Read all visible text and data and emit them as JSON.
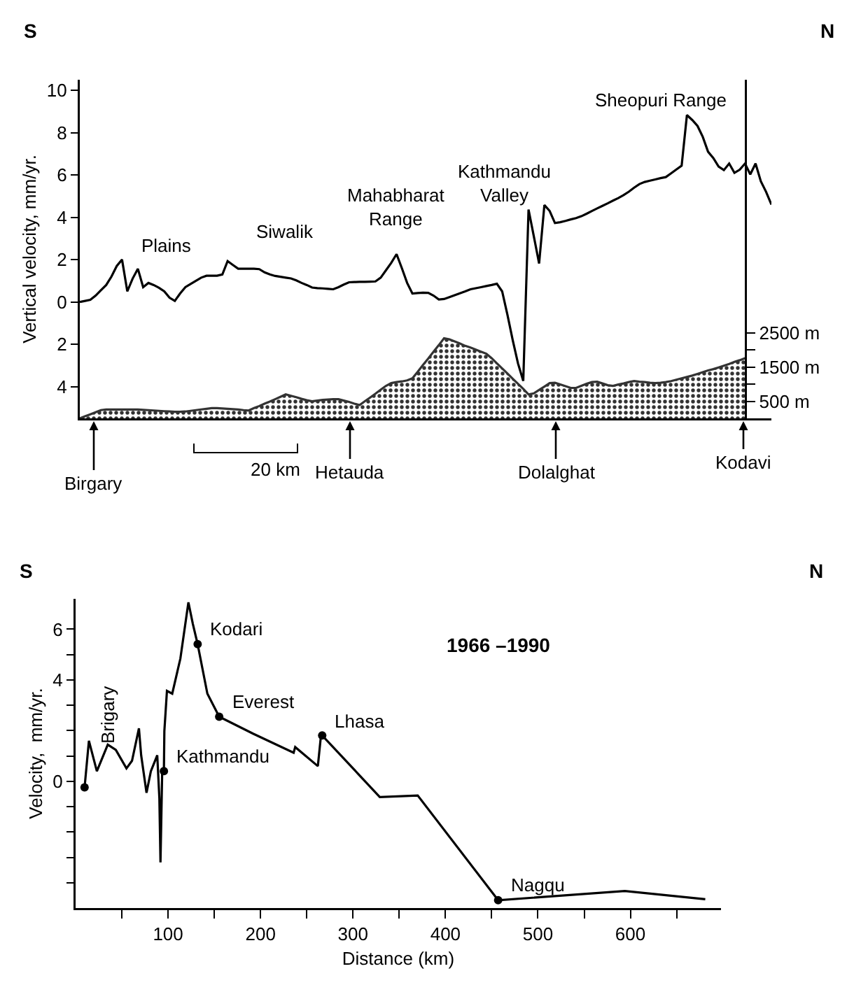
{
  "chart_data": [
    {
      "type": "line",
      "ylabel": "Vertical velocity, mm/yr.",
      "categories": [
        null,
        null,
        null,
        null,
        null,
        null,
        null,
        null,
        null,
        null,
        null,
        null,
        null,
        null,
        null,
        null,
        null,
        null,
        null,
        null,
        null,
        null,
        null,
        null,
        null,
        null,
        null,
        null,
        null,
        null,
        null,
        null,
        null,
        null,
        null,
        null,
        null,
        null,
        null,
        null,
        null,
        null,
        null,
        null,
        null,
        null,
        null,
        null,
        null,
        null,
        null,
        null,
        null,
        null,
        null,
        null,
        null,
        null,
        null,
        null,
        null,
        null,
        null,
        null,
        null,
        null,
        null,
        null,
        null,
        null,
        null,
        null,
        null,
        null,
        null,
        null,
        null,
        null,
        null,
        null,
        null,
        null,
        null,
        null,
        null,
        null,
        null,
        null,
        null,
        null,
        null,
        null,
        null,
        null,
        null,
        null,
        null,
        null,
        null,
        null,
        null,
        null,
        null,
        null,
        null,
        null,
        null,
        null,
        null,
        null,
        null,
        null,
        null,
        null,
        null,
        null,
        null,
        null,
        null,
        null,
        null,
        null,
        null,
        null,
        null,
        null,
        null,
        null,
        null,
        null,
        null,
        null
      ],
      "ylim": [
        -5.5,
        10.5
      ],
      "yticks": [
        10,
        8,
        6,
        4,
        2,
        0,
        {
          "value": -2,
          "label": "2"
        },
        {
          "value": -4,
          "label": "4"
        }
      ],
      "y2lim": [
        0,
        9900
      ],
      "y2ticks": [
        {
          "value": 500,
          "label": "500 m"
        },
        {
          "value": 1000,
          "label": null
        },
        {
          "value": 1500,
          "label": "1500 m"
        },
        {
          "value": 2000,
          "label": null
        },
        {
          "value": 2500,
          "label": "2500 m"
        }
      ],
      "tick_labels": "y",
      "series": [
        {
          "color": "#000000",
          "values": [
            0,
            0.05,
            0.1,
            0.3,
            0.55,
            0.8,
            1.2,
            1.7,
            2.0,
            0.5,
            1.1,
            1.57,
            0.7,
            0.9,
            0.8,
            0.67,
            0.5,
            0.2,
            0.05,
            0.4,
            0.7,
            0.85,
            1.0,
            1.15,
            1.24,
            1.24,
            1.24,
            1.3,
            1.93,
            1.75,
            1.57,
            1.57,
            1.57,
            1.57,
            1.55,
            1.4,
            1.3,
            1.23,
            1.19,
            1.15,
            1.11,
            1.02,
            0.9,
            0.8,
            0.68,
            0.65,
            0.64,
            0.62,
            0.6,
            0.7,
            0.82,
            0.93,
            0.94,
            0.95,
            0.95,
            0.96,
            0.97,
            1.15,
            1.5,
            1.85,
            2.26,
            1.6,
            0.9,
            0.4,
            0.42,
            0.44,
            0.43,
            0.3,
            0.12,
            0.14,
            0.23,
            0.32,
            0.41,
            0.5,
            0.6,
            0.65,
            0.7,
            0.75,
            0.8,
            0.86,
            0.5,
            -0.6,
            -1.8,
            -2.9,
            -3.73,
            4.37,
            3.1,
            1.82,
            4.58,
            4.3,
            3.73,
            3.77,
            3.83,
            3.9,
            3.96,
            4.05,
            4.17,
            4.3,
            4.42,
            4.54,
            4.66,
            4.79,
            4.91,
            5.05,
            5.21,
            5.4,
            5.57,
            5.67,
            5.73,
            5.79,
            5.85,
            5.9,
            6.08,
            6.26,
            6.44,
            8.83,
            8.6,
            8.32,
            7.8,
            7.1,
            6.8,
            6.4,
            6.23,
            6.54,
            6.1,
            6.25,
            6.54,
            6.03,
            6.54,
            5.7,
            5.2,
            4.6
          ]
        },
        {
          "type": "area",
          "axis": "y2",
          "color": "#333333",
          "values": [
            0,
            60,
            120,
            180,
            240,
            260,
            260,
            260,
            260,
            260,
            260,
            260,
            250,
            240,
            230,
            220,
            210,
            200,
            190,
            190,
            200,
            220,
            240,
            260,
            280,
            300,
            300,
            290,
            280,
            270,
            260,
            240,
            230,
            300,
            360,
            430,
            490,
            560,
            630,
            700,
            660,
            620,
            570,
            530,
            500,
            520,
            540,
            550,
            560,
            560,
            520,
            480,
            430,
            390,
            500,
            610,
            720,
            840,
            950,
            1030,
            1060,
            1080,
            1110,
            1170,
            1360,
            1560,
            1750,
            1950,
            2140,
            2340,
            2310,
            2250,
            2190,
            2120,
            2070,
            2010,
            1950,
            1890,
            1760,
            1610,
            1460,
            1310,
            1160,
            1010,
            860,
            700,
            730,
            830,
            930,
            1030,
            1040,
            990,
            940,
            890,
            890,
            950,
            1010,
            1060,
            1070,
            1020,
            970,
            950,
            990,
            1020,
            1060,
            1090,
            1070,
            1060,
            1040,
            1030,
            1040,
            1060,
            1090,
            1130,
            1170,
            1210,
            1250,
            1300,
            1350,
            1400,
            1440,
            1490,
            1540,
            1590,
            1650,
            1700,
            1760,
            null,
            null,
            null,
            null,
            null
          ]
        }
      ],
      "annotations": [
        "S",
        "N",
        "Plains",
        "Siwalik",
        "Mahabharat\nRange",
        "Kathmandu\nValley",
        "Sheopuri Range",
        "Birgary",
        "Hetauda",
        "Dolalghat",
        "Kodavi",
        "20 km"
      ]
    },
    {
      "type": "line",
      "xlabel": "Distance (km)",
      "ylabel": "Velocity,  mm/yr.",
      "xlim": [
        0,
        698
      ],
      "ylim": [
        -5,
        7.2
      ],
      "xticks": [
        {
          "value": 50,
          "label": null
        },
        100,
        {
          "value": 150,
          "label": null
        },
        200,
        {
          "value": 250,
          "label": null
        },
        300,
        {
          "value": 350,
          "label": null
        },
        400,
        {
          "value": 450,
          "label": null
        },
        500,
        {
          "value": 550,
          "label": null
        },
        600,
        {
          "value": 650,
          "label": null
        }
      ],
      "yticks": [
        6,
        {
          "value": 5,
          "label": null
        },
        4,
        {
          "value": 3,
          "label": null
        },
        {
          "value": 2,
          "label": null
        },
        {
          "value": 1,
          "label": null
        },
        0,
        {
          "value": -1,
          "label": null
        },
        {
          "value": -2,
          "label": null
        },
        {
          "value": -3,
          "label": null
        },
        {
          "value": -4,
          "label": null
        }
      ],
      "series": [
        {
          "color": "#000000",
          "x": [
            9.7,
            14.4,
            23,
            34.8,
            43.5,
            55,
            61,
            68.5,
            70.9,
            76.7,
            81.4,
            88.3,
            90.6,
            91.8,
            93.6,
            95.5,
            96,
            98.8,
            104.5,
            113.3,
            122,
            126.8,
            132,
            142.5,
            155.3,
            192,
            235.8,
            237.5,
            262,
            265.6,
            266.7,
            329,
            370,
            457,
            594,
            681
          ],
          "values": [
            -0.24,
            1.6,
            0.4,
            1.45,
            1.24,
            0.51,
            0.81,
            2.09,
            1.03,
            -0.45,
            0.4,
            1.03,
            -0.67,
            -3.2,
            0.29,
            0.4,
            1.98,
            3.57,
            3.46,
            4.84,
            7.06,
            6.21,
            5.41,
            3.46,
            2.55,
            1.88,
            1.13,
            1.35,
            0.6,
            1.89,
            1.81,
            -0.62,
            -0.56,
            -4.69,
            -4.33,
            -4.65
          ]
        },
        {
          "type": "scatter",
          "color": "#000000",
          "x": [
            9.7,
            95.5,
            132,
            155.3,
            266.7,
            457
          ],
          "values": [
            -0.24,
            0.4,
            5.41,
            2.55,
            1.81,
            -4.69
          ]
        }
      ],
      "annotations": [
        "S",
        "N",
        "1966 –1990",
        "Brigary",
        {
          "text": "Kathmandu",
          "x": 95.5,
          "y": 0.4
        },
        {
          "text": "Kodari",
          "x": 132,
          "y": 5.41
        },
        {
          "text": "Everest",
          "x": 155.3,
          "y": 2.55
        },
        {
          "text": "Lhasa",
          "x": 266.7,
          "y": 1.81
        },
        {
          "text": "Nagqu",
          "x": 457,
          "y": -4.69
        }
      ]
    }
  ]
}
